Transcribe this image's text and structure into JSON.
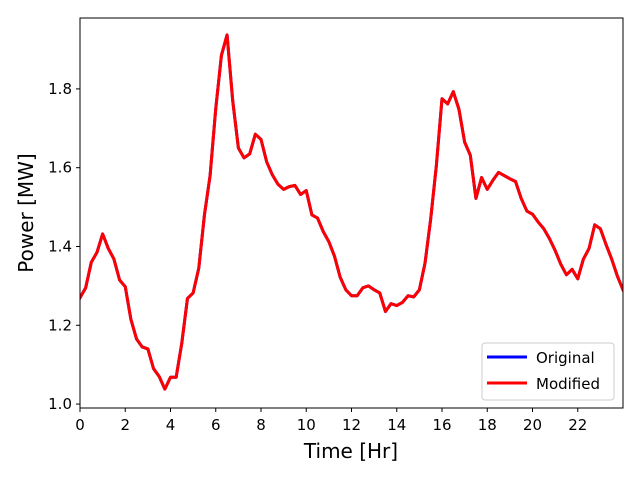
{
  "chart_data": {
    "type": "line",
    "xlabel": "Time [Hr]",
    "ylabel": "Power [MW]",
    "xlim": [
      0,
      24
    ],
    "ylim": [
      0.99,
      1.98
    ],
    "xticks": [
      0,
      2,
      4,
      6,
      8,
      10,
      12,
      14,
      16,
      18,
      20,
      22
    ],
    "xtick_labels": [
      "0",
      "2",
      "4",
      "6",
      "8",
      "10",
      "12",
      "14",
      "16",
      "18",
      "20",
      "22"
    ],
    "yticks": [
      1.0,
      1.2,
      1.4,
      1.6,
      1.8
    ],
    "ytick_labels": [
      "1.0",
      "1.2",
      "1.4",
      "1.6",
      "1.8"
    ],
    "grid": false,
    "legend_position": "lower-right",
    "x": [
      0.0,
      0.25,
      0.5,
      0.75,
      1.0,
      1.25,
      1.5,
      1.75,
      2.0,
      2.25,
      2.5,
      2.75,
      3.0,
      3.25,
      3.5,
      3.75,
      4.0,
      4.25,
      4.5,
      4.75,
      5.0,
      5.25,
      5.5,
      5.75,
      6.0,
      6.25,
      6.5,
      6.75,
      7.0,
      7.25,
      7.5,
      7.75,
      8.0,
      8.25,
      8.5,
      8.75,
      9.0,
      9.25,
      9.5,
      9.75,
      10.0,
      10.25,
      10.5,
      10.75,
      11.0,
      11.25,
      11.5,
      11.75,
      12.0,
      12.25,
      12.5,
      12.75,
      13.0,
      13.25,
      13.5,
      13.75,
      14.0,
      14.25,
      14.5,
      14.75,
      15.0,
      15.25,
      15.5,
      15.75,
      16.0,
      16.25,
      16.5,
      16.75,
      17.0,
      17.25,
      17.5,
      17.75,
      18.0,
      18.25,
      18.5,
      18.75,
      19.0,
      19.25,
      19.5,
      19.75,
      20.0,
      20.25,
      20.5,
      20.75,
      21.0,
      21.25,
      21.5,
      21.75,
      22.0,
      22.25,
      22.5,
      22.75,
      23.0,
      23.25,
      23.5,
      23.75,
      24.0
    ],
    "series": [
      {
        "name": "Original",
        "color": "#0000ff",
        "values": [
          1.27,
          1.295,
          1.36,
          1.385,
          1.432,
          1.395,
          1.368,
          1.315,
          1.298,
          1.215,
          1.165,
          1.145,
          1.14,
          1.09,
          1.07,
          1.038,
          1.068,
          1.068,
          1.155,
          1.268,
          1.282,
          1.345,
          1.48,
          1.58,
          1.75,
          1.885,
          1.937,
          1.77,
          1.65,
          1.625,
          1.635,
          1.685,
          1.672,
          1.615,
          1.582,
          1.558,
          1.545,
          1.552,
          1.555,
          1.532,
          1.542,
          1.48,
          1.472,
          1.438,
          1.412,
          1.375,
          1.322,
          1.29,
          1.275,
          1.275,
          1.295,
          1.3,
          1.29,
          1.282,
          1.235,
          1.255,
          1.25,
          1.258,
          1.275,
          1.272,
          1.29,
          1.358,
          1.47,
          1.605,
          1.775,
          1.762,
          1.793,
          1.748,
          1.665,
          1.632,
          1.522,
          1.575,
          1.545,
          1.568,
          1.588,
          1.58,
          1.572,
          1.565,
          1.522,
          1.49,
          1.482,
          1.462,
          1.445,
          1.42,
          1.39,
          1.355,
          1.328,
          1.342,
          1.318,
          1.368,
          1.395,
          1.455,
          1.445,
          1.405,
          1.368,
          1.325,
          1.29
        ]
      },
      {
        "name": "Modified",
        "color": "#ff0000",
        "values": [
          1.27,
          1.295,
          1.36,
          1.385,
          1.432,
          1.395,
          1.368,
          1.315,
          1.298,
          1.215,
          1.165,
          1.145,
          1.14,
          1.09,
          1.07,
          1.038,
          1.068,
          1.068,
          1.155,
          1.268,
          1.282,
          1.345,
          1.48,
          1.58,
          1.75,
          1.885,
          1.937,
          1.77,
          1.65,
          1.625,
          1.635,
          1.685,
          1.672,
          1.615,
          1.582,
          1.558,
          1.545,
          1.552,
          1.555,
          1.532,
          1.542,
          1.48,
          1.472,
          1.438,
          1.412,
          1.375,
          1.322,
          1.29,
          1.275,
          1.275,
          1.295,
          1.3,
          1.29,
          1.282,
          1.235,
          1.255,
          1.25,
          1.258,
          1.275,
          1.272,
          1.29,
          1.358,
          1.47,
          1.605,
          1.775,
          1.762,
          1.793,
          1.748,
          1.665,
          1.632,
          1.522,
          1.575,
          1.545,
          1.568,
          1.588,
          1.58,
          1.572,
          1.565,
          1.522,
          1.49,
          1.482,
          1.462,
          1.445,
          1.42,
          1.39,
          1.355,
          1.328,
          1.342,
          1.318,
          1.368,
          1.395,
          1.455,
          1.445,
          1.405,
          1.368,
          1.325,
          1.29
        ]
      }
    ]
  }
}
